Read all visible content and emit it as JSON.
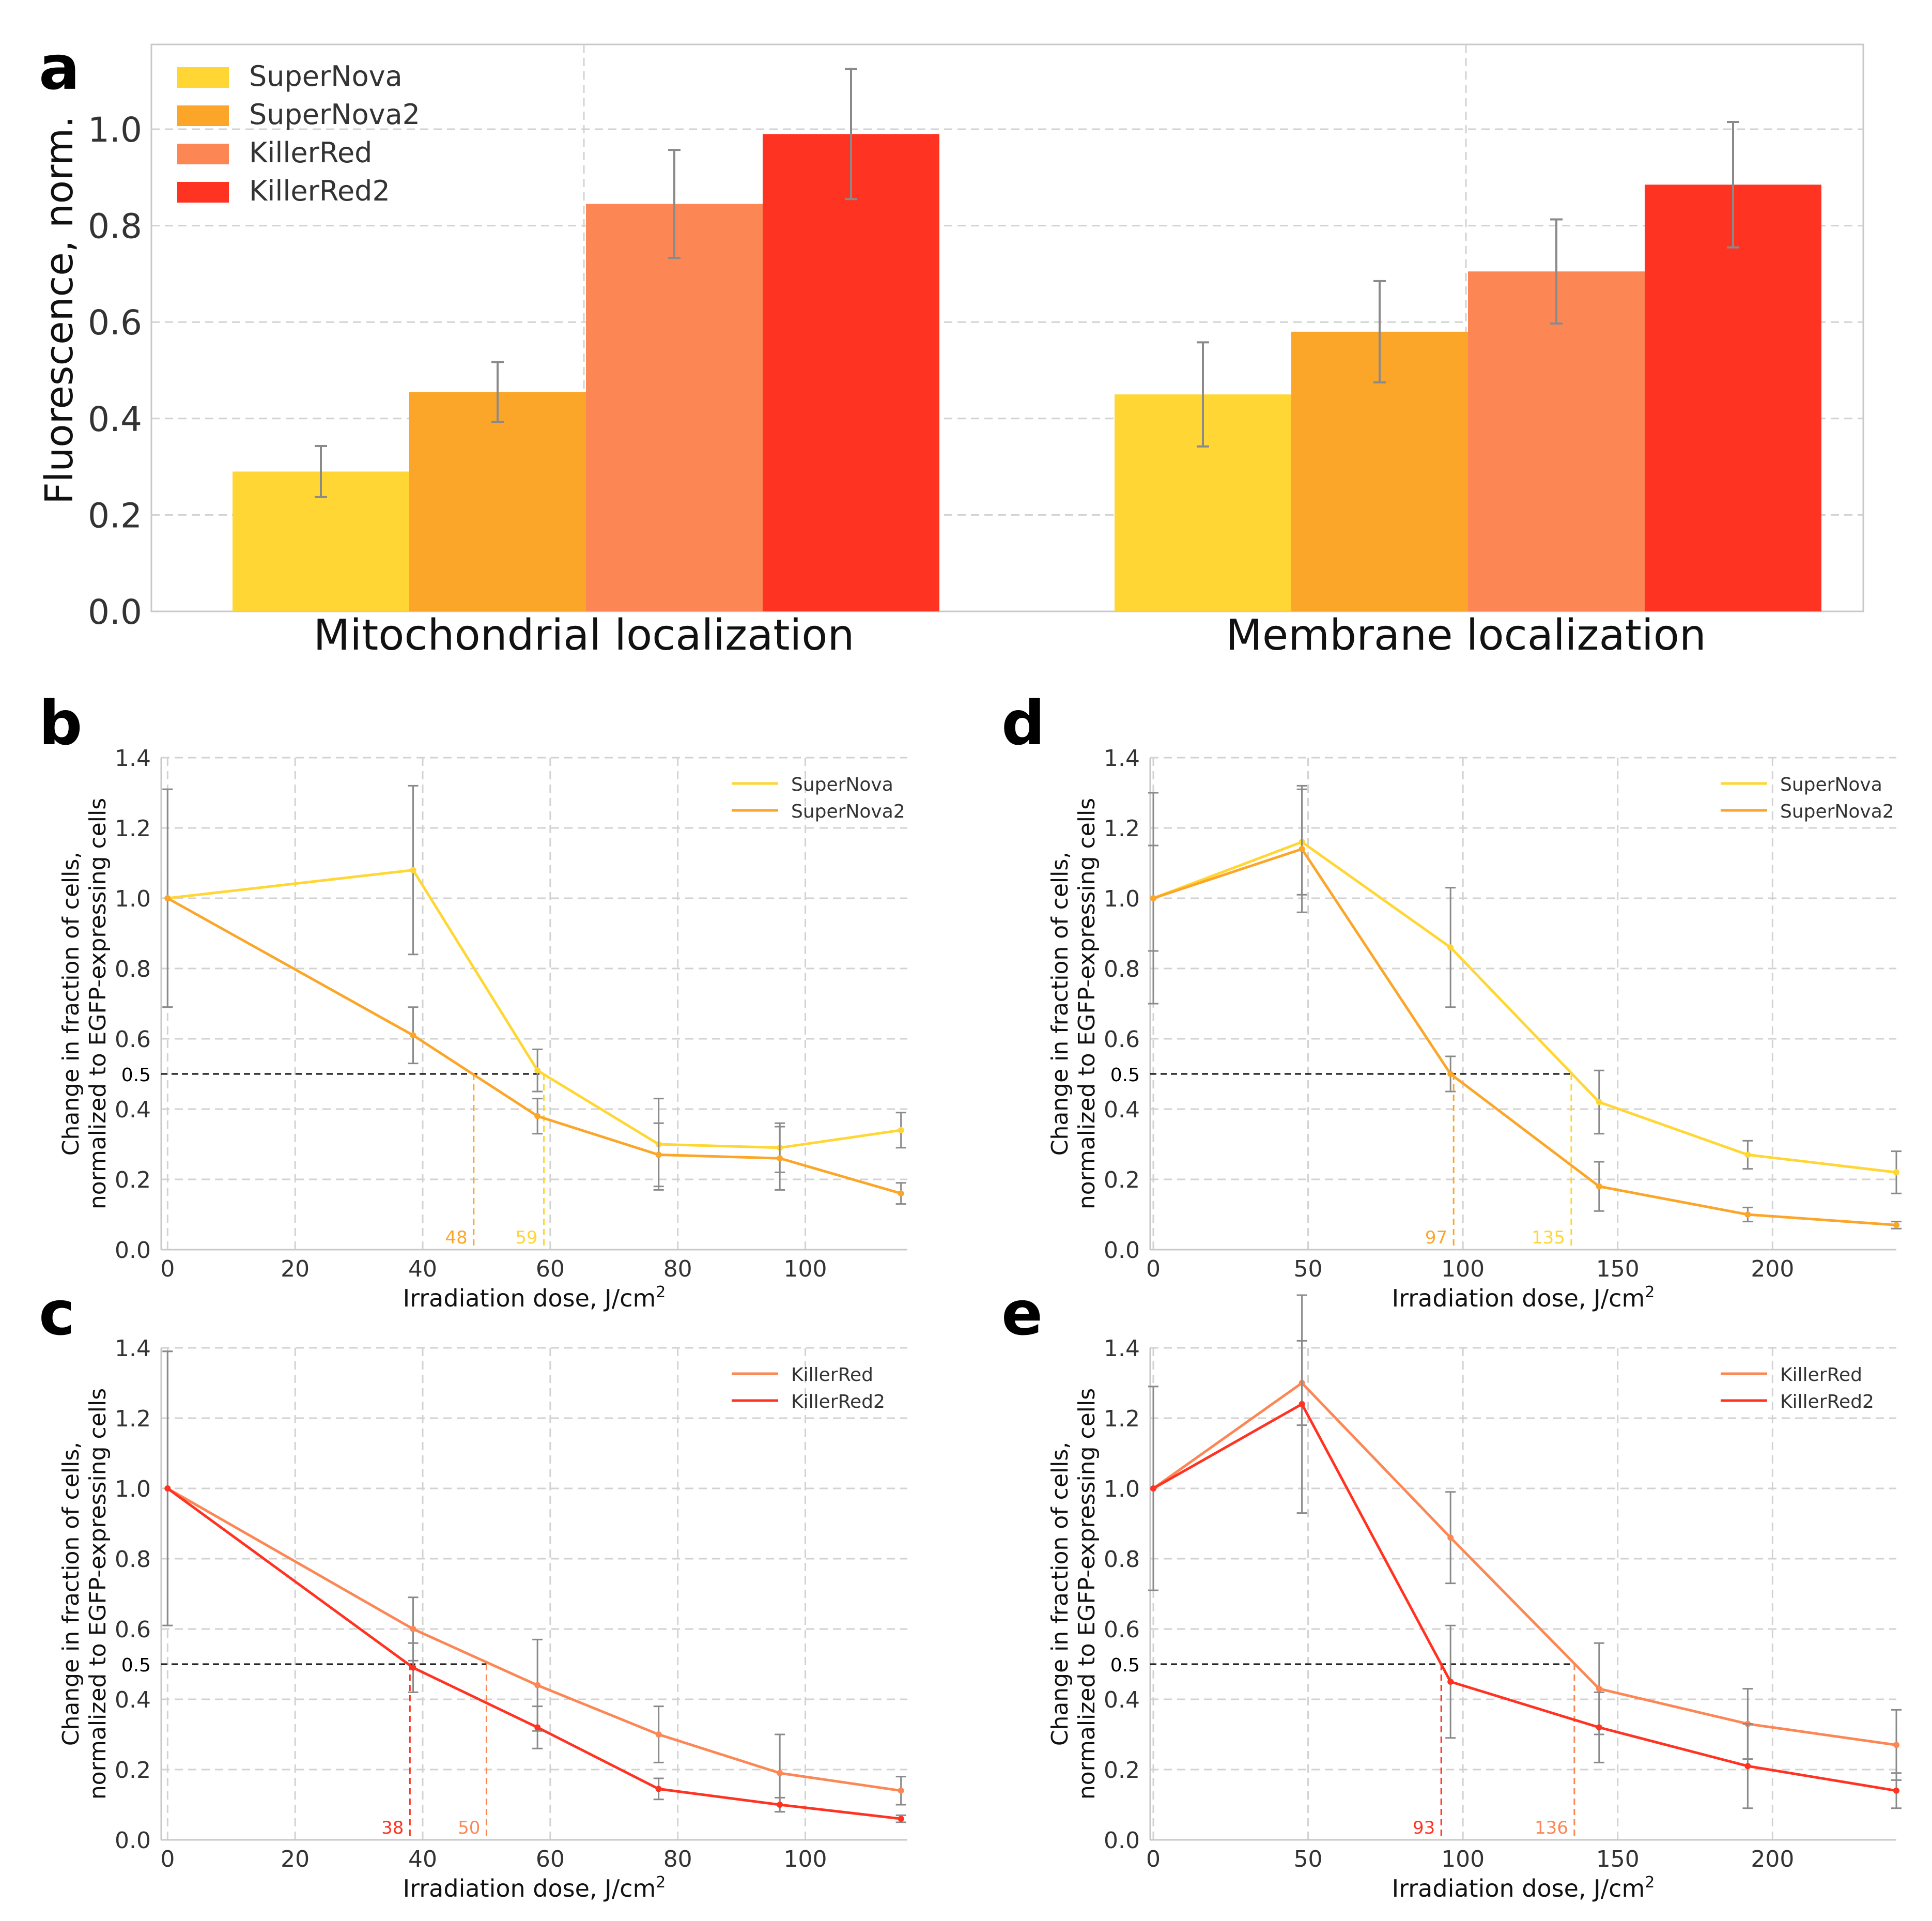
{
  "chart_data": [
    {
      "panel": "a",
      "type": "bar",
      "categories": [
        "Mitochondrial localization",
        "Membrane localization"
      ],
      "series": [
        {
          "name": "SuperNova",
          "values": [
            0.29,
            0.45
          ],
          "errors": [
            0.053,
            0.108
          ],
          "color": "#FFD633"
        },
        {
          "name": "SuperNova2",
          "values": [
            0.455,
            0.58
          ],
          "errors": [
            0.062,
            0.105
          ],
          "color": "#FBA628"
        },
        {
          "name": "KillerRed",
          "values": [
            0.845,
            0.705
          ],
          "errors": [
            0.112,
            0.108
          ],
          "color": "#FC8755"
        },
        {
          "name": "KillerRed2",
          "values": [
            0.99,
            0.885
          ],
          "errors": [
            0.135,
            0.13
          ],
          "color": "#FF3322"
        }
      ],
      "ylabel": "Fluorescence, norm.",
      "ylim": [
        0,
        1.15
      ],
      "yticks": [
        "0.0",
        "0.2",
        "0.4",
        "0.6",
        "0.8",
        "1.0"
      ],
      "legend": "top-left"
    },
    {
      "panel": "b",
      "type": "line",
      "xlabel": "Irradiation dose, J/cm",
      "xlabel_sup": "2",
      "ylabel": [
        "Change in fraction of cells,",
        "normalized to EGFP-expressing cells"
      ],
      "xlim": [
        -1,
        116
      ],
      "ylim": [
        0,
        1.4
      ],
      "xticks": [
        "0",
        "20",
        "40",
        "60",
        "80",
        "100"
      ],
      "yticks": [
        "0.0",
        "0.2",
        "0.4",
        "0.6",
        "0.8",
        "1.0",
        "1.2",
        "1.4"
      ],
      "half_label": "0.5",
      "half_level": 0.5,
      "series": [
        {
          "name": "SuperNova",
          "color": "#FFD633",
          "x": [
            0,
            38.5,
            58,
            77,
            96,
            115
          ],
          "y": [
            1.0,
            1.08,
            0.51,
            0.3,
            0.29,
            0.34
          ],
          "err": [
            0.31,
            0.24,
            0.06,
            0.13,
            0.07,
            0.05
          ],
          "ic50": 59,
          "ic50_label": "59"
        },
        {
          "name": "SuperNova2",
          "color": "#FBA628",
          "x": [
            0,
            38.5,
            58,
            77,
            96,
            115
          ],
          "y": [
            1.0,
            0.61,
            0.38,
            0.27,
            0.26,
            0.16
          ],
          "err": [
            0.31,
            0.08,
            0.05,
            0.09,
            0.09,
            0.03
          ],
          "ic50": 48,
          "ic50_label": "48"
        }
      ]
    },
    {
      "panel": "c",
      "type": "line",
      "xlabel": "Irradiation dose, J/cm",
      "xlabel_sup": "2",
      "ylabel": [
        "Change in fraction of cells,",
        "normalized to EGFP-expressing cells"
      ],
      "xlim": [
        -1,
        116
      ],
      "ylim": [
        0,
        1.4
      ],
      "xticks": [
        "0",
        "20",
        "40",
        "60",
        "80",
        "100"
      ],
      "yticks": [
        "0.0",
        "0.2",
        "0.4",
        "0.6",
        "0.8",
        "1.0",
        "1.2",
        "1.4"
      ],
      "half_label": "0.5",
      "half_level": 0.5,
      "series": [
        {
          "name": "KillerRed",
          "color": "#FC8755",
          "x": [
            0,
            38.5,
            58,
            77,
            96,
            115
          ],
          "y": [
            1.0,
            0.6,
            0.44,
            0.3,
            0.19,
            0.14
          ],
          "err": [
            0.39,
            0.09,
            0.13,
            0.08,
            0.11,
            0.04
          ],
          "ic50": 50,
          "ic50_label": "50"
        },
        {
          "name": "KillerRed2",
          "color": "#FF3322",
          "x": [
            0,
            38.5,
            58,
            77,
            96,
            115
          ],
          "y": [
            1.0,
            0.49,
            0.32,
            0.145,
            0.1,
            0.06
          ],
          "err": [
            0.39,
            0.07,
            0.06,
            0.03,
            0.02,
            0.01
          ],
          "ic50": 38,
          "ic50_label": "38"
        }
      ]
    },
    {
      "panel": "d",
      "type": "line",
      "xlabel": "Irradiation dose, J/cm",
      "xlabel_sup": "2",
      "ylabel": [
        "Change in fraction of cells,",
        "normalized to EGFP-expressing cells"
      ],
      "xlim": [
        -1,
        240
      ],
      "ylim": [
        0,
        1.4
      ],
      "xticks": [
        "0",
        "50",
        "100",
        "150",
        "200"
      ],
      "yticks": [
        "0.0",
        "0.2",
        "0.4",
        "0.6",
        "0.8",
        "1.0",
        "1.2",
        "1.4"
      ],
      "half_label": "0.5",
      "half_level": 0.5,
      "series": [
        {
          "name": "SuperNova",
          "color": "#FFD633",
          "x": [
            0,
            48,
            96,
            144,
            192,
            240
          ],
          "y": [
            1.0,
            1.16,
            0.86,
            0.42,
            0.27,
            0.22
          ],
          "err": [
            0.3,
            0.15,
            0.17,
            0.09,
            0.04,
            0.06
          ],
          "ic50": 135,
          "ic50_label": "135"
        },
        {
          "name": "SuperNova2",
          "color": "#FBA628",
          "x": [
            0,
            48,
            96,
            144,
            192,
            240
          ],
          "y": [
            1.0,
            1.14,
            0.5,
            0.18,
            0.1,
            0.07
          ],
          "err": [
            0.15,
            0.18,
            0.05,
            0.07,
            0.02,
            0.01
          ],
          "ic50": 97,
          "ic50_label": "97"
        }
      ]
    },
    {
      "panel": "e",
      "type": "line",
      "xlabel": "Irradiation dose, J/cm",
      "xlabel_sup": "2",
      "ylabel": [
        "Change in fraction of cells,",
        "normalized to EGFP-expressing cells"
      ],
      "xlim": [
        -1,
        240
      ],
      "ylim": [
        0,
        1.4
      ],
      "xticks": [
        "0",
        "50",
        "100",
        "150",
        "200"
      ],
      "yticks": [
        "0.0",
        "0.2",
        "0.4",
        "0.6",
        "0.8",
        "1.0",
        "1.2",
        "1.4"
      ],
      "half_label": "0.5",
      "half_level": 0.5,
      "series": [
        {
          "name": "KillerRed",
          "color": "#FC8755",
          "x": [
            0,
            48,
            96,
            144,
            192,
            240
          ],
          "y": [
            1.0,
            1.3,
            0.86,
            0.43,
            0.33,
            0.27
          ],
          "err": [
            0.29,
            0.12,
            0.13,
            0.13,
            0.1,
            0.1
          ],
          "ic50": 136,
          "ic50_label": "136"
        },
        {
          "name": "KillerRed2",
          "color": "#FF3322",
          "x": [
            0,
            48,
            96,
            144,
            192,
            240
          ],
          "y": [
            1.0,
            1.24,
            0.45,
            0.32,
            0.21,
            0.14
          ],
          "err": [
            0.29,
            0.31,
            0.16,
            0.1,
            0.12,
            0.05
          ],
          "ic50": 93,
          "ic50_label": "93"
        }
      ]
    }
  ],
  "panel_letters": [
    "a",
    "b",
    "c",
    "d",
    "e"
  ]
}
